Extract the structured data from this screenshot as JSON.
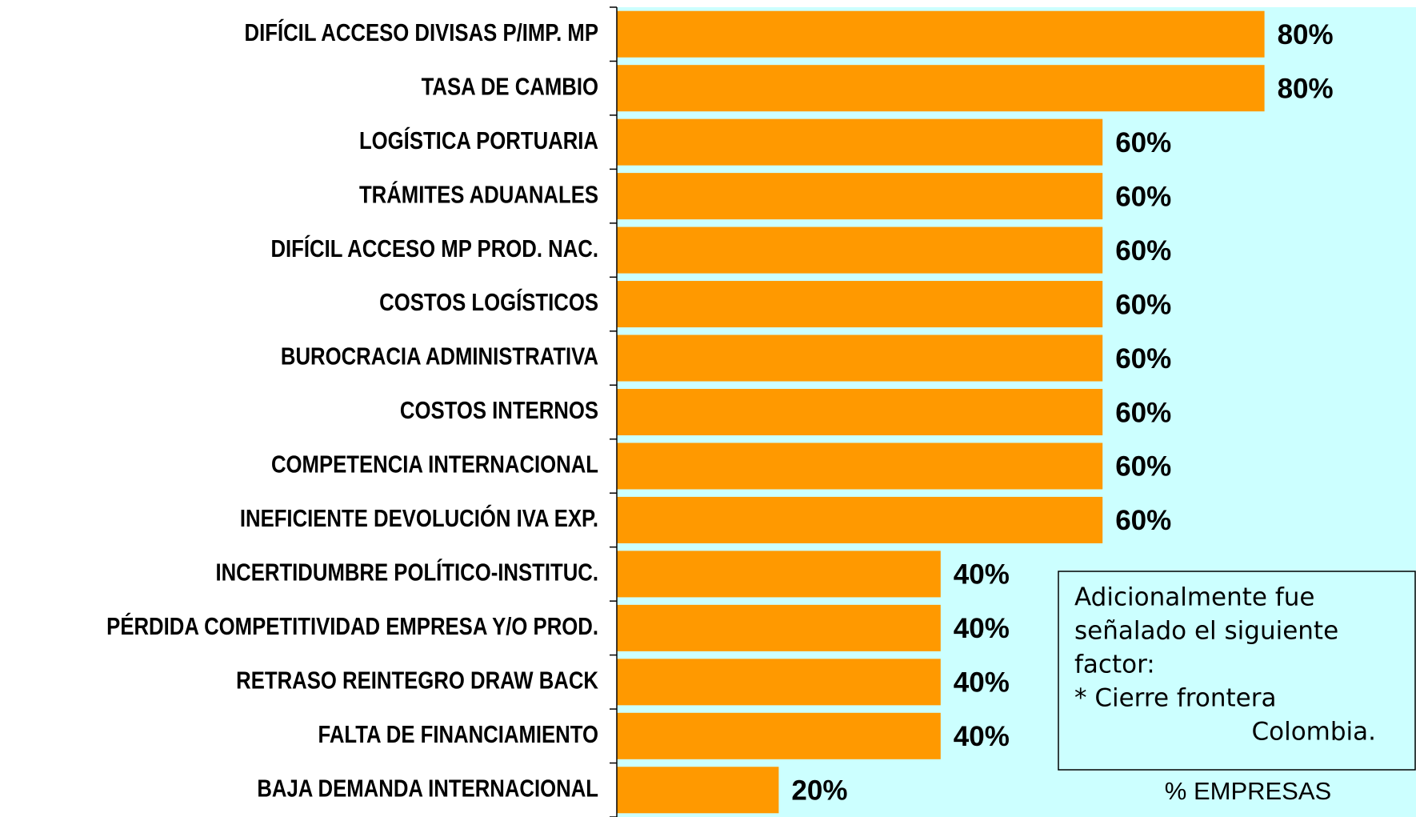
{
  "chart_data": {
    "type": "barh",
    "categories": [
      "DIFÍCIL ACCESO DIVISAS P/IMP. MP",
      "TASA DE CAMBIO",
      "LOGÍSTICA PORTUARIA",
      "TRÁMITES ADUANALES",
      "DIFÍCIL ACCESO MP PROD. NAC.",
      "COSTOS LOGÍSTICOS",
      "BUROCRACIA ADMINISTRATIVA",
      "COSTOS INTERNOS",
      "COMPETENCIA INTERNACIONAL",
      "INEFICIENTE DEVOLUCIÓN IVA EXP.",
      "INCERTIDUMBRE POLÍTICO-INSTITUC.",
      "PÉRDIDA COMPETITIVIDAD EMPRESA Y/O PROD.",
      "RETRASO REINTEGRO DRAW BACK",
      "FALTA DE FINANCIAMIENTO",
      "BAJA DEMANDA INTERNACIONAL"
    ],
    "values": [
      80,
      80,
      60,
      60,
      60,
      60,
      60,
      60,
      60,
      60,
      40,
      40,
      40,
      40,
      20
    ],
    "value_labels": [
      "80%",
      "80%",
      "60%",
      "60%",
      "60%",
      "60%",
      "60%",
      "60%",
      "60%",
      "60%",
      "40%",
      "40%",
      "40%",
      "40%",
      "20%"
    ],
    "color": "#ff9900",
    "background": "#ccffff",
    "xlim": [
      0,
      100
    ],
    "xlabel": "% EMPRESAS",
    "annotation": [
      "Adicionalmente fue",
      "señalado el siguiente",
      "factor:",
      "* Cierre frontera",
      "Colombia."
    ]
  }
}
